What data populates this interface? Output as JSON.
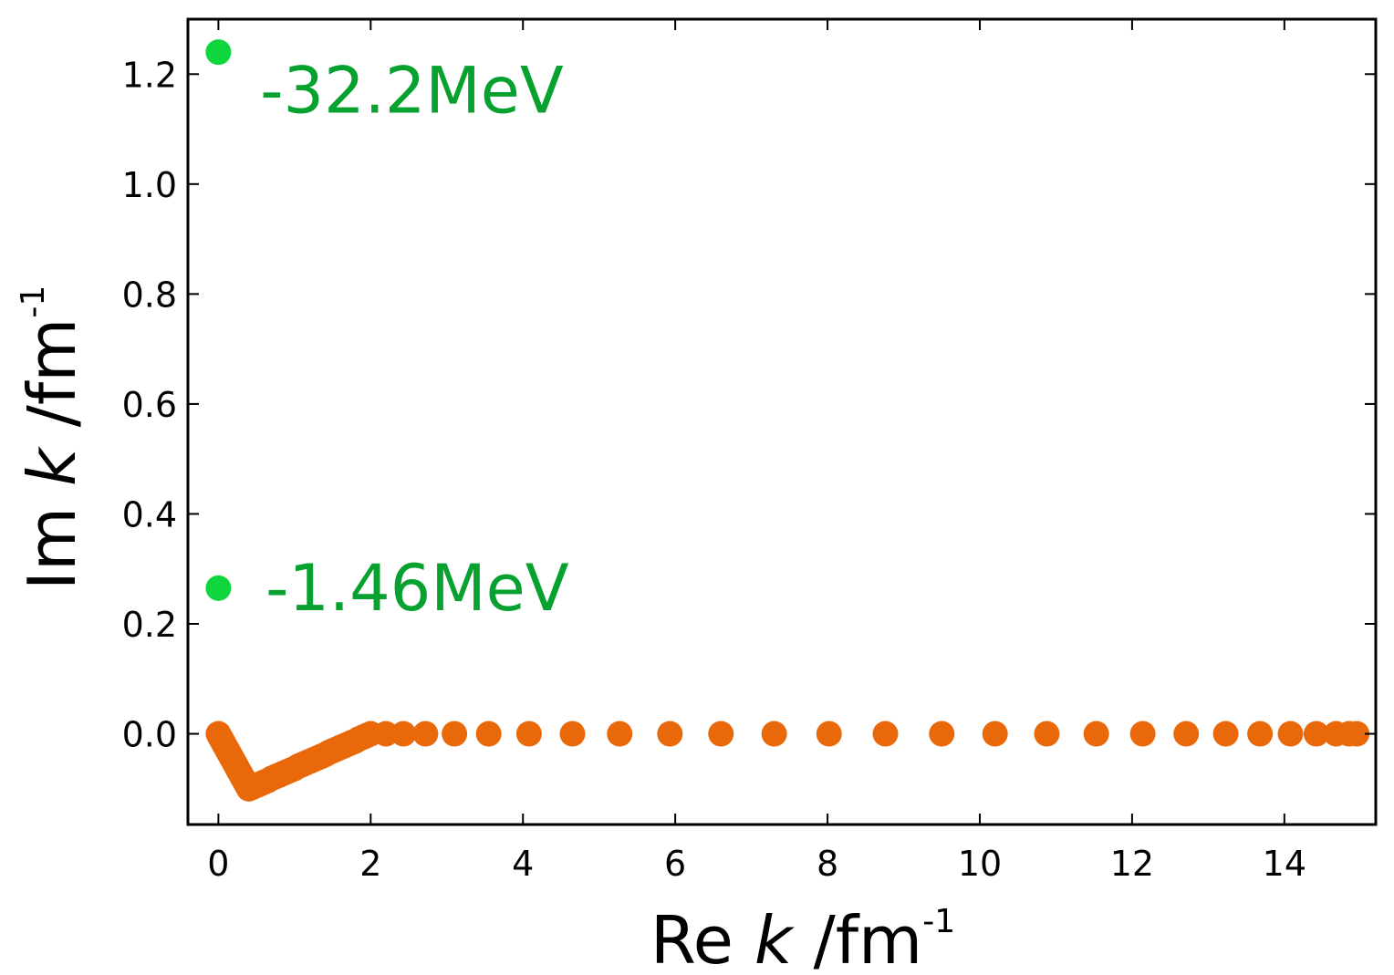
{
  "chart_data": {
    "type": "scatter",
    "xlabel": {
      "prefix": "Re ",
      "var": "k",
      "unit": " /fm",
      "exp": "-1"
    },
    "ylabel": {
      "prefix": "Im ",
      "var": "k",
      "unit": " /fm",
      "exp": "-1"
    },
    "xlim": [
      -0.4,
      15.2
    ],
    "ylim": [
      -0.165,
      1.3
    ],
    "xticks": [
      0,
      2,
      4,
      6,
      8,
      10,
      12,
      14
    ],
    "xtick_labels": [
      "0",
      "2",
      "4",
      "6",
      "8",
      "10",
      "12",
      "14"
    ],
    "yticks": [
      0.0,
      0.2,
      0.4,
      0.6,
      0.8,
      1.0,
      1.2
    ],
    "ytick_labels": [
      "0.0",
      "0.2",
      "0.4",
      "0.6",
      "0.8",
      "1.0",
      "1.2"
    ],
    "grid": false,
    "colors": {
      "contour": "#e8680a",
      "bound": "#0fd63c",
      "annotation": "#06a12e"
    },
    "series": [
      {
        "role": "contour",
        "x": [
          0.0,
          0.02,
          0.04,
          0.06,
          0.08,
          0.1,
          0.12,
          0.14,
          0.16,
          0.18,
          0.2,
          0.22,
          0.24,
          0.26,
          0.28,
          0.3,
          0.32,
          0.34,
          0.36,
          0.38,
          0.4,
          0.45,
          0.5,
          0.55,
          0.6,
          0.65,
          0.7,
          0.75,
          0.8,
          0.85,
          0.9,
          0.95,
          1.0,
          1.05,
          1.1,
          1.15,
          1.2,
          1.25,
          1.3,
          1.35,
          1.4,
          1.45,
          1.5,
          1.55,
          1.6,
          1.65,
          1.7,
          1.75,
          1.8,
          1.85,
          1.9,
          1.95,
          2.0,
          2.2,
          2.43,
          2.72,
          3.1,
          3.55,
          4.08,
          4.65,
          5.27,
          5.93,
          6.6,
          7.3,
          8.02,
          8.76,
          9.5,
          10.2,
          10.88,
          11.53,
          12.14,
          12.71,
          13.23,
          13.68,
          14.08,
          14.42,
          14.68,
          14.85,
          14.95
        ],
        "y": [
          0.0,
          -0.005,
          -0.01,
          -0.015,
          -0.02,
          -0.025,
          -0.03,
          -0.035,
          -0.04,
          -0.045,
          -0.05,
          -0.055,
          -0.06,
          -0.065,
          -0.07,
          -0.075,
          -0.08,
          -0.085,
          -0.09,
          -0.095,
          -0.1,
          -0.097,
          -0.094,
          -0.091,
          -0.088,
          -0.085,
          -0.081,
          -0.078,
          -0.075,
          -0.072,
          -0.069,
          -0.066,
          -0.063,
          -0.059,
          -0.056,
          -0.053,
          -0.05,
          -0.047,
          -0.044,
          -0.041,
          -0.038,
          -0.034,
          -0.031,
          -0.028,
          -0.025,
          -0.022,
          -0.019,
          -0.016,
          -0.013,
          -0.009,
          -0.006,
          -0.003,
          0.0,
          0.0,
          0.0,
          0.0,
          0.0,
          0.0,
          0.0,
          0.0,
          0.0,
          0.0,
          0.0,
          0.0,
          0.0,
          0.0,
          0.0,
          0.0,
          0.0,
          0.0,
          0.0,
          0.0,
          0.0,
          0.0,
          0.0,
          0.0,
          0.0,
          0.0,
          0.0
        ]
      },
      {
        "role": "bound",
        "x": [
          0.0,
          0.0
        ],
        "y": [
          1.24,
          0.265
        ]
      }
    ],
    "annotations": [
      {
        "text": "-32.2MeV",
        "x": 0.55,
        "y": 1.17
      },
      {
        "text": "-1.46MeV",
        "x": 0.62,
        "y": 0.265
      }
    ]
  }
}
